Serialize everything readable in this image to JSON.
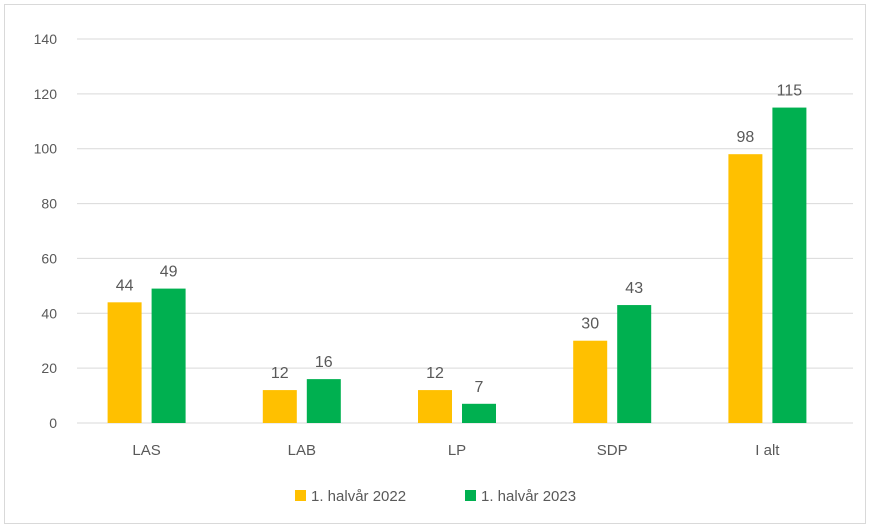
{
  "chart_data": {
    "type": "bar",
    "categories": [
      "LAS",
      "LAB",
      "LP",
      "SDP",
      "I alt"
    ],
    "series": [
      {
        "name": "1. halvår 2022",
        "values": [
          44,
          12,
          12,
          30,
          98
        ],
        "color": "#FFC000"
      },
      {
        "name": "1. halvår 2023",
        "values": [
          49,
          16,
          7,
          43,
          115
        ],
        "color": "#00B050"
      }
    ],
    "ylim": [
      0,
      140
    ],
    "yticks": [
      0,
      20,
      40,
      60,
      80,
      100,
      120,
      140
    ],
    "grid": true,
    "data_labels": true,
    "legend_position": "bottom",
    "gridline_color": "#d9d9d9",
    "text_color": "#595959"
  }
}
